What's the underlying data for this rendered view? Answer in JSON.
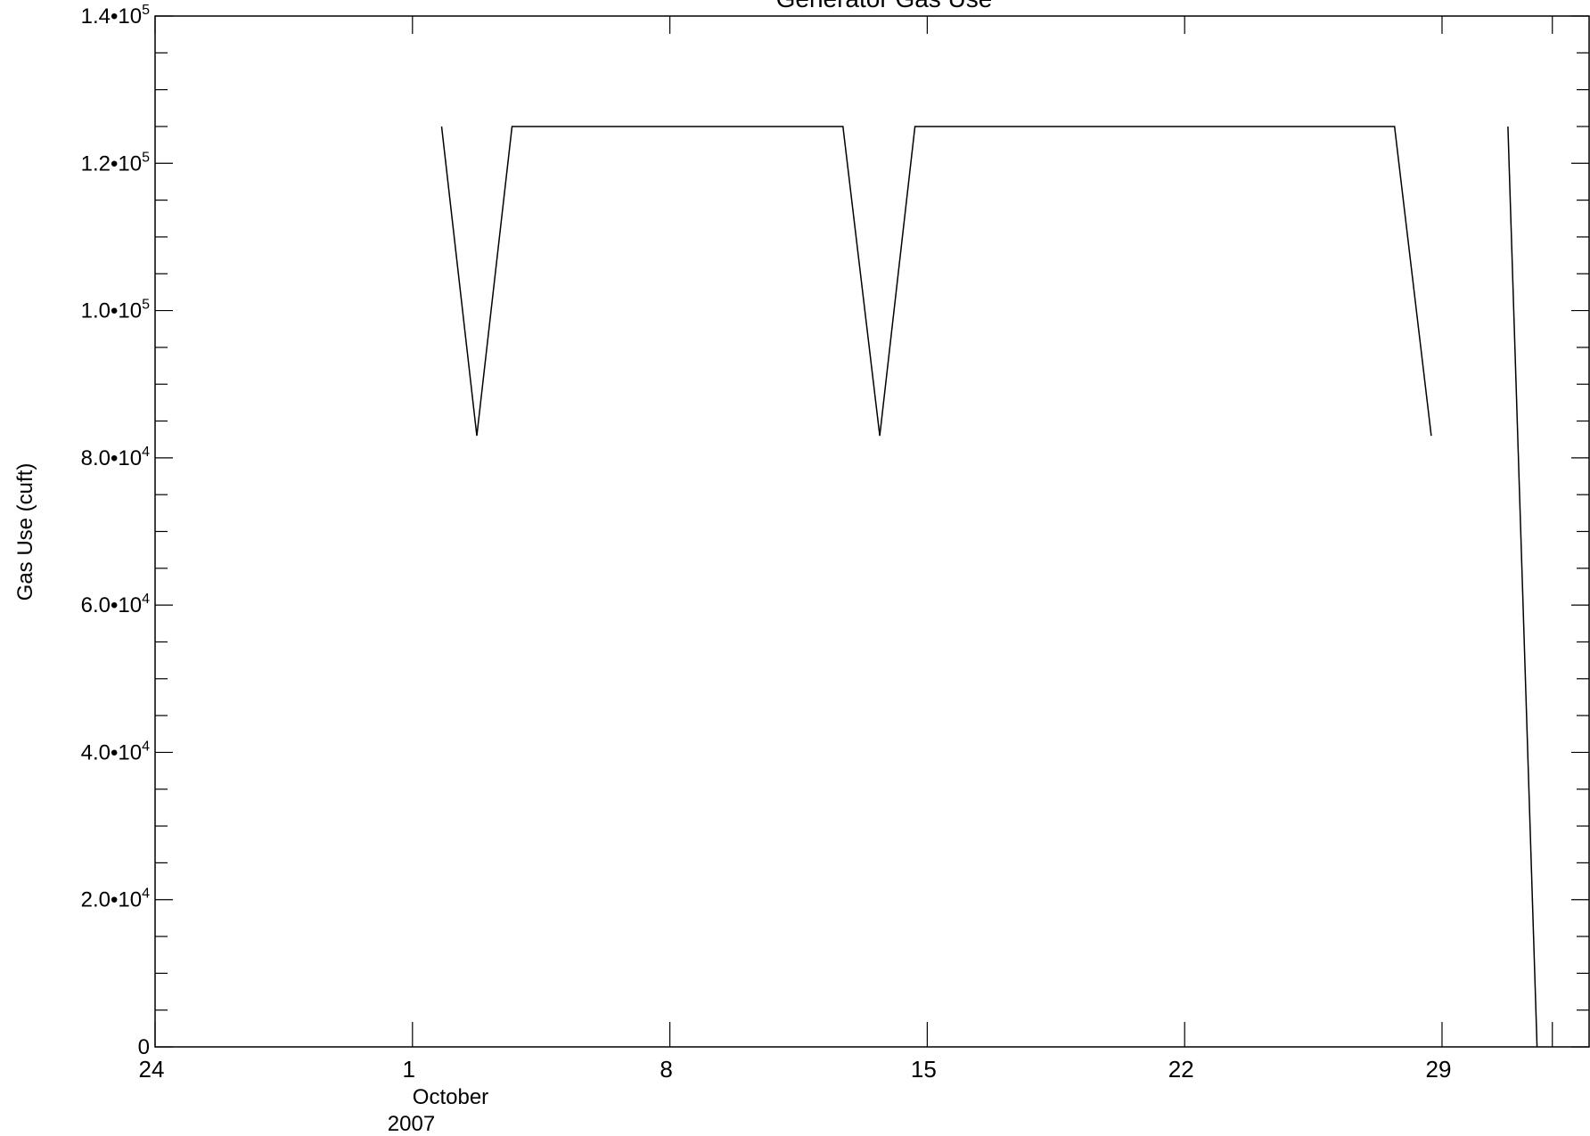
{
  "chart_data": {
    "type": "line",
    "title": "Generator Gas Use",
    "ylabel": "Gas Use (cuft)",
    "xlabel": "",
    "xlim": [
      "2007-09-24",
      "2007-11-02"
    ],
    "ylim": [
      0,
      140000
    ],
    "y_ticks": [
      {
        "value": 0,
        "label": "0",
        "exp": ""
      },
      {
        "value": 20000,
        "label": "2.0•10",
        "exp": "4"
      },
      {
        "value": 40000,
        "label": "4.0•10",
        "exp": "4"
      },
      {
        "value": 60000,
        "label": "6.0•10",
        "exp": "4"
      },
      {
        "value": 80000,
        "label": "8.0•10",
        "exp": "4"
      },
      {
        "value": 100000,
        "label": "1.0•10",
        "exp": "5"
      },
      {
        "value": 120000,
        "label": "1.2•10",
        "exp": "5"
      },
      {
        "value": 140000,
        "label": "1.4•10",
        "exp": "5"
      }
    ],
    "x_ticks": [
      {
        "date": "2007-09-24",
        "label": "24"
      },
      {
        "date": "2007-10-01",
        "label": "1",
        "sub1": "October",
        "sub2": "2007"
      },
      {
        "date": "2007-10-08",
        "label": "8"
      },
      {
        "date": "2007-10-15",
        "label": "15"
      },
      {
        "date": "2007-10-22",
        "label": "22"
      },
      {
        "date": "2007-10-29",
        "label": "29"
      }
    ],
    "grid": false,
    "legend": "none",
    "line_color": "#000000",
    "series": [
      {
        "segments": [
          [
            {
              "x": "2007-10-01 19:00",
              "y": 125000
            },
            {
              "x": "2007-10-02 18:00",
              "y": 83000
            },
            {
              "x": "2007-10-03 17:00",
              "y": 125000
            },
            {
              "x": "2007-10-12 17:00",
              "y": 125000
            },
            {
              "x": "2007-10-13 17:00",
              "y": 83000
            },
            {
              "x": "2007-10-14 16:00",
              "y": 125000
            },
            {
              "x": "2007-10-27 17:00",
              "y": 125000
            },
            {
              "x": "2007-10-28 17:00",
              "y": 83000
            }
          ],
          [
            {
              "x": "2007-10-30 19:00",
              "y": 125000
            },
            {
              "x": "2007-10-31 14:00",
              "y": 0
            }
          ]
        ]
      }
    ]
  }
}
